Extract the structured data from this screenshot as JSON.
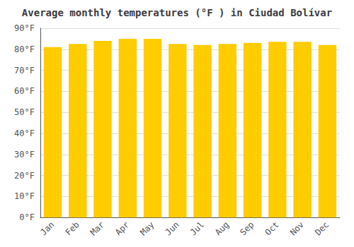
{
  "chart_data": {
    "type": "bar",
    "title": "Average monthly temperatures (°F ) in Ciudad Bolívar",
    "categories": [
      "Jan",
      "Feb",
      "Mar",
      "Apr",
      "May",
      "Jun",
      "Jul",
      "Aug",
      "Sep",
      "Oct",
      "Nov",
      "Dec"
    ],
    "values": [
      81.0,
      82.5,
      84.0,
      85.0,
      85.0,
      82.5,
      82.0,
      82.5,
      83.0,
      83.5,
      83.5,
      82.0
    ],
    "color": "#FFCC00",
    "ylim": [
      0,
      90
    ],
    "yticks": [
      {
        "value": 0,
        "label": "0°F"
      },
      {
        "value": 10,
        "label": "10°F"
      },
      {
        "value": 20,
        "label": "20°F"
      },
      {
        "value": 30,
        "label": "30°F"
      },
      {
        "value": 40,
        "label": "40°F"
      },
      {
        "value": 50,
        "label": "50°F"
      },
      {
        "value": 60,
        "label": "60°F"
      },
      {
        "value": 70,
        "label": "70°F"
      },
      {
        "value": 80,
        "label": "80°F"
      },
      {
        "value": 90,
        "label": "90°F"
      }
    ],
    "grid": true
  }
}
